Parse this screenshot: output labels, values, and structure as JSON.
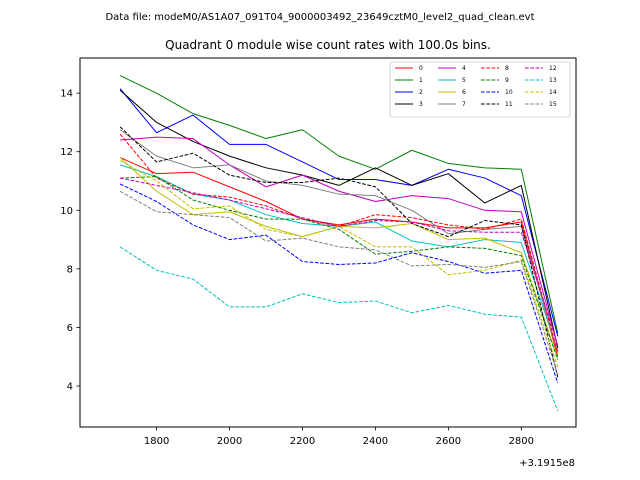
{
  "chart_data": {
    "type": "line",
    "suptitle": "Data file: modeM0/AS1A07_091T04_9000003492_23649cztM0_level2_quad_clean.evt",
    "title": "Quadrant 0 module wise count rates with 100.0s bins.",
    "xlabel": "",
    "ylabel": "",
    "x_offset_label": "+3.1915e8",
    "x": [
      1700,
      1800,
      1900,
      2000,
      2100,
      2200,
      2300,
      2400,
      2500,
      2600,
      2700,
      2800,
      2900
    ],
    "xlim": [
      1590,
      2950
    ],
    "ylim": [
      2.6,
      15.2
    ],
    "xticks": [
      1800,
      2000,
      2200,
      2400,
      2600,
      2800
    ],
    "yticks": [
      4,
      6,
      8,
      10,
      12,
      14
    ],
    "legend_position": "top-right",
    "legend_columns": 4,
    "series": [
      {
        "name": "0",
        "color": "#ff0000",
        "dash": "solid",
        "values": [
          11.8,
          11.25,
          11.3,
          10.8,
          10.3,
          9.7,
          9.5,
          9.7,
          9.6,
          9.4,
          9.4,
          9.6,
          5.0
        ]
      },
      {
        "name": "1",
        "color": "#008000",
        "dash": "solid",
        "values": [
          14.6,
          14.0,
          13.3,
          12.9,
          12.45,
          12.75,
          11.85,
          11.4,
          12.05,
          11.6,
          11.45,
          11.4,
          5.8
        ]
      },
      {
        "name": "2",
        "color": "#0000ff",
        "dash": "solid",
        "values": [
          14.15,
          12.65,
          13.25,
          12.25,
          12.25,
          11.65,
          11.05,
          11.05,
          10.85,
          11.4,
          11.1,
          10.5,
          5.7
        ]
      },
      {
        "name": "3",
        "color": "#000000",
        "dash": "solid",
        "values": [
          14.1,
          13.0,
          12.35,
          11.85,
          11.45,
          11.2,
          10.85,
          11.45,
          10.85,
          11.25,
          10.25,
          10.85,
          5.3
        ]
      },
      {
        "name": "4",
        "color": "#bf00bf",
        "dash": "solid",
        "values": [
          12.4,
          12.5,
          12.45,
          11.55,
          10.8,
          11.2,
          10.65,
          10.3,
          10.5,
          10.4,
          10.0,
          9.95,
          5.35
        ]
      },
      {
        "name": "5",
        "color": "#00bfbf",
        "dash": "solid",
        "values": [
          11.55,
          11.15,
          10.55,
          10.35,
          9.85,
          9.55,
          9.45,
          9.6,
          8.95,
          8.75,
          9.0,
          8.9,
          5.2
        ]
      },
      {
        "name": "6",
        "color": "#bfbf00",
        "dash": "solid",
        "values": [
          11.8,
          10.65,
          9.85,
          9.95,
          9.45,
          9.1,
          9.45,
          9.4,
          9.55,
          9.0,
          9.05,
          8.55,
          4.95
        ]
      },
      {
        "name": "7",
        "color": "#808080",
        "dash": "solid",
        "values": [
          12.75,
          11.85,
          11.45,
          11.55,
          11.0,
          10.85,
          10.55,
          10.5,
          10.0,
          9.2,
          9.35,
          9.45,
          5.1
        ]
      },
      {
        "name": "8",
        "color": "#ff0000",
        "dash": "dashed",
        "values": [
          12.6,
          11.1,
          10.55,
          10.45,
          10.15,
          9.7,
          9.45,
          9.85,
          9.75,
          9.5,
          9.35,
          9.7,
          5.15
        ]
      },
      {
        "name": "9",
        "color": "#008000",
        "dash": "dashed",
        "values": [
          11.1,
          11.15,
          10.35,
          10.0,
          9.7,
          9.7,
          9.35,
          8.5,
          8.6,
          8.75,
          8.7,
          8.45,
          4.9
        ]
      },
      {
        "name": "10",
        "color": "#0000ff",
        "dash": "dashed",
        "values": [
          10.9,
          10.3,
          9.5,
          9.0,
          9.15,
          8.25,
          8.15,
          8.2,
          8.55,
          8.25,
          7.85,
          7.95,
          4.1
        ]
      },
      {
        "name": "11",
        "color": "#000000",
        "dash": "dashed",
        "values": [
          12.85,
          11.65,
          11.95,
          11.2,
          10.95,
          10.95,
          11.1,
          10.8,
          9.55,
          9.1,
          9.65,
          9.5,
          4.3
        ]
      },
      {
        "name": "12",
        "color": "#bf00bf",
        "dash": "dashed",
        "values": [
          11.1,
          10.85,
          10.6,
          10.35,
          10.05,
          9.75,
          9.45,
          9.65,
          9.6,
          9.3,
          9.25,
          9.25,
          5.4
        ]
      },
      {
        "name": "13",
        "color": "#00bfbf",
        "dash": "dashed",
        "values": [
          8.75,
          7.95,
          7.65,
          6.7,
          6.7,
          7.15,
          6.85,
          6.9,
          6.5,
          6.75,
          6.45,
          6.35,
          3.15
        ]
      },
      {
        "name": "14",
        "color": "#bfbf00",
        "dash": "dashed",
        "values": [
          11.7,
          11.0,
          10.05,
          10.15,
          9.35,
          9.1,
          9.45,
          8.75,
          8.75,
          7.8,
          7.95,
          8.3,
          4.65
        ]
      },
      {
        "name": "15",
        "color": "#808080",
        "dash": "dashed",
        "values": [
          10.65,
          9.95,
          9.85,
          9.75,
          8.95,
          9.05,
          8.75,
          8.65,
          8.1,
          8.15,
          8.05,
          8.25,
          4.4
        ]
      }
    ]
  }
}
